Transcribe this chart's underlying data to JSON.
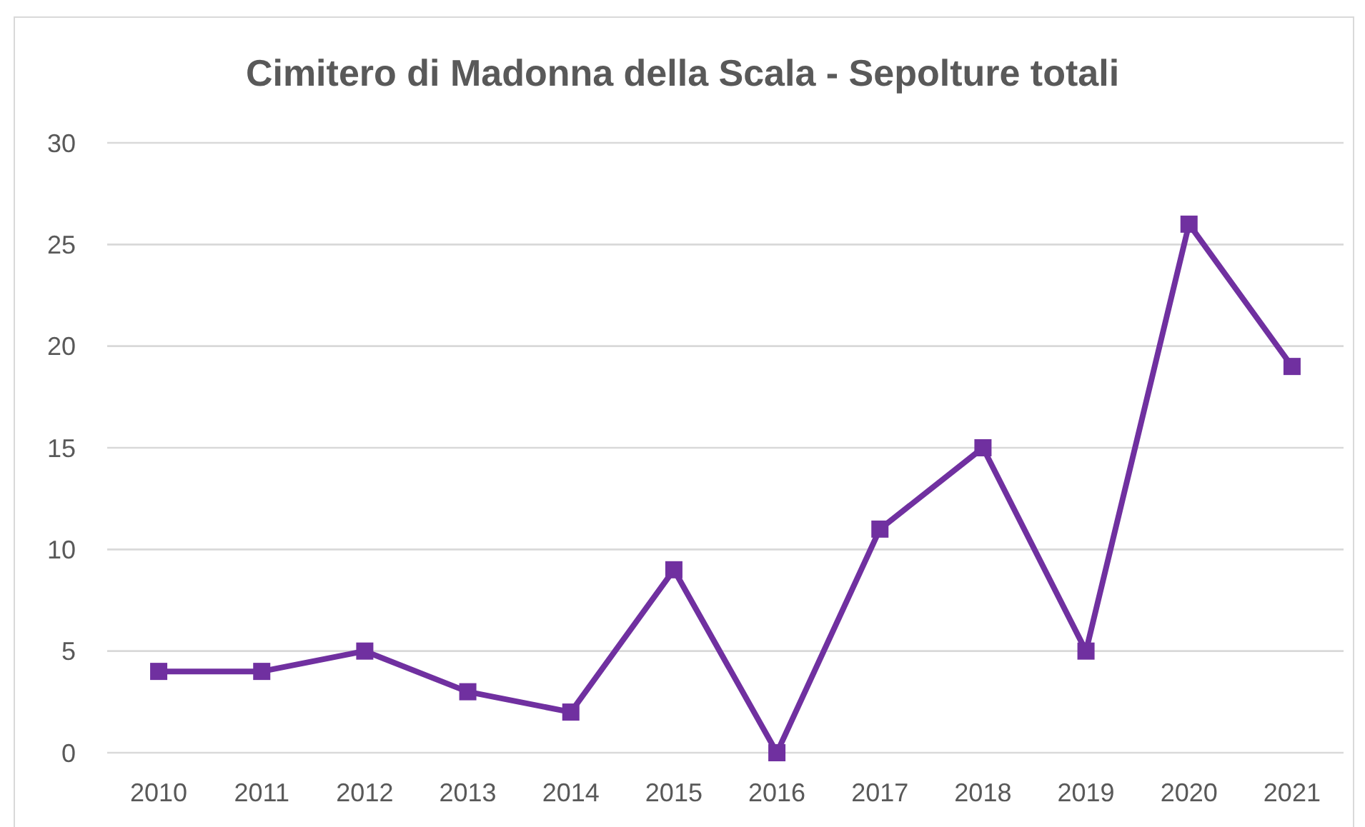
{
  "chart_data": {
    "type": "line",
    "title": "Cimitero di Madonna della Scala - Sepolture totali",
    "categories": [
      "2010",
      "2011",
      "2012",
      "2013",
      "2014",
      "2015",
      "2016",
      "2017",
      "2018",
      "2019",
      "2020",
      "2021"
    ],
    "series": [
      {
        "color": "#7030a0",
        "values": [
          4,
          4,
          5,
          3,
          2,
          9,
          0,
          11,
          15,
          5,
          26,
          19
        ]
      }
    ],
    "ylim": [
      0,
      30
    ],
    "yticks": [
      0,
      5,
      10,
      15,
      20,
      25,
      30
    ],
    "grid": "y",
    "marker": "square",
    "line_style": "solid"
  }
}
